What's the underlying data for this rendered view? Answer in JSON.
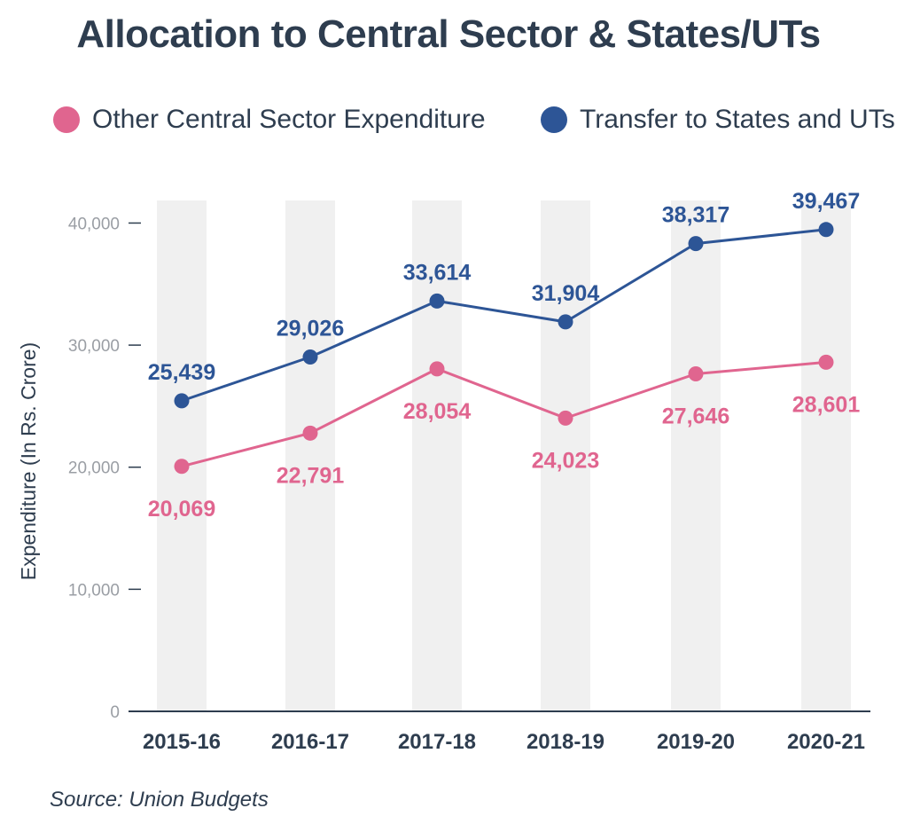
{
  "chart_data": {
    "type": "line",
    "title": "Allocation to Central Sector & States/UTs",
    "ylabel": "Expenditure (In Rs. Crore)",
    "xlabel": "",
    "categories": [
      "2015-16",
      "2016-17",
      "2017-18",
      "2018-19",
      "2019-20",
      "2020-21"
    ],
    "ylim": [
      0,
      42000
    ],
    "yticks": [
      0,
      10000,
      20000,
      30000,
      40000
    ],
    "ytick_labels": [
      "0",
      "10,000",
      "20,000",
      "30,000",
      "40,000"
    ],
    "series": [
      {
        "name": "Other Central Sector Expenditure",
        "color": "#e0658f",
        "values": [
          20069,
          22791,
          28054,
          24023,
          27646,
          28601
        ],
        "labels": [
          "20,069",
          "22,791",
          "28,054",
          "24,023",
          "27,646",
          "28,601"
        ]
      },
      {
        "name": "Transfer to States and UTs",
        "color": "#2d5596",
        "values": [
          25439,
          29026,
          33614,
          31904,
          38317,
          39467
        ],
        "labels": [
          "25,439",
          "29,026",
          "33,614",
          "31,904",
          "38,317",
          "39,467"
        ]
      }
    ],
    "legend_position": "top",
    "grid": false,
    "source": "Source: Union Budgets"
  }
}
